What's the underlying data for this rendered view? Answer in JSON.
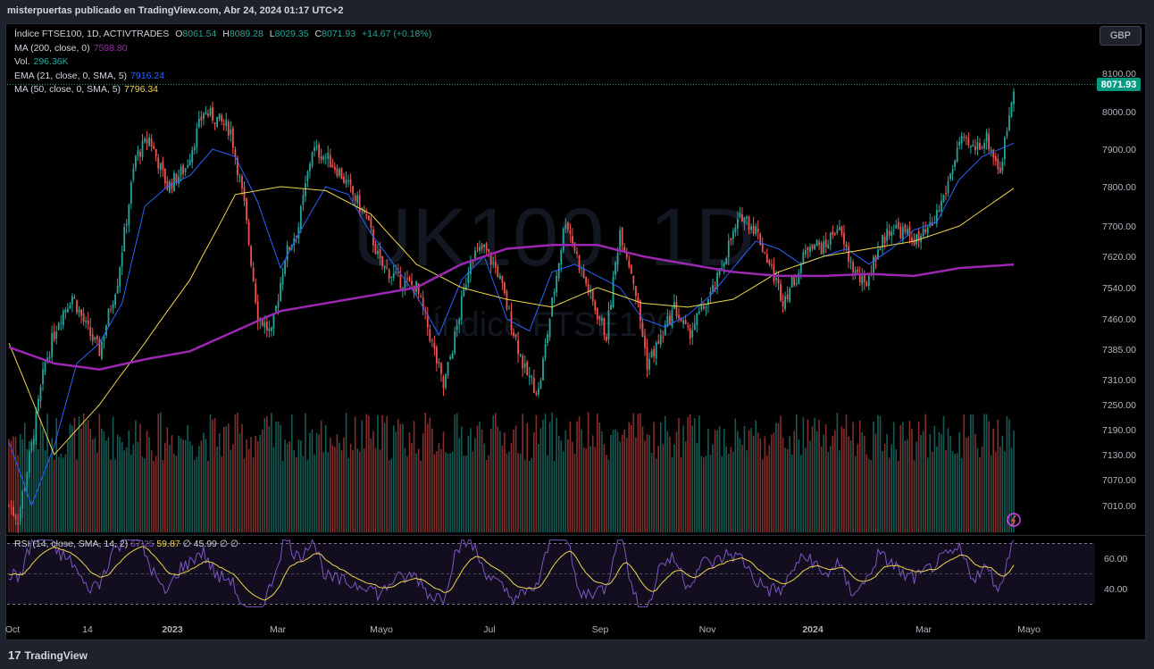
{
  "header": {
    "publisher": "misterpuertas publicado en TradingView.com, Abr 24, 2024 01:17 UTC+2"
  },
  "legend": {
    "symbol": "Índice FTSE100, 1D, ACTIVTRADES",
    "o_label": "O",
    "o": "8061.54",
    "h_label": "H",
    "h": "8089.28",
    "l_label": "L",
    "l": "8029.35",
    "c_label": "C",
    "c": "8071.93",
    "change": "+14.67 (+0.18%)",
    "ma200_label": "MA (200, close, 0)",
    "ma200": "7598.80",
    "vol_label": "Vol.",
    "vol": "296.36K",
    "ema21_label": "EMA (21, close, 0, SMA, 5)",
    "ema21": "7916.24",
    "ma50_label": "MA (50, close, 0, SMA, 5)",
    "ma50": "7796.34"
  },
  "currency_button": "GBP",
  "last_price": "8071.93",
  "watermark": {
    "symbol": "UK100, 1D",
    "name": "Índice FTSE100"
  },
  "rsi_legend": {
    "label": "RSI (14, close, SMA, 14, 2)",
    "v1": "67.25",
    "v2": "59.87",
    "v3": "∅",
    "v4": "45.99",
    "v5": "∅",
    "v6": "∅"
  },
  "footer": {
    "brand": "TradingView",
    "logo_mark": "17"
  },
  "colors": {
    "up": "#26a69a",
    "down": "#ef5350",
    "ma200": "#9c27b0",
    "ema21": "#2962ff",
    "ma50": "#f0d64a",
    "rsi": "#7e57c2",
    "rsi_ma": "#f0d64a"
  },
  "chart_data": {
    "type": "candlestick",
    "title": "Índice FTSE100, 1D, ACTIVTRADES",
    "price_axis": [
      "8100.00",
      "8000.00",
      "7900.00",
      "7800.00",
      "7700.00",
      "7620.00",
      "7540.00",
      "7460.00",
      "7385.00",
      "7310.00",
      "7250.00",
      "7190.00",
      "7130.00",
      "7070.00",
      "7010.00"
    ],
    "time_axis": [
      "Oct",
      "14",
      "2023",
      "Mar",
      "Mayo",
      "Jul",
      "Sep",
      "Nov",
      "2024",
      "Mar",
      "Mayo"
    ],
    "rsi_axis": [
      "60.00",
      "40.00"
    ],
    "close_path": [
      [
        0,
        7010
      ],
      [
        4,
        6980
      ],
      [
        10,
        7150
      ],
      [
        16,
        7350
      ],
      [
        22,
        7460
      ],
      [
        28,
        7520
      ],
      [
        34,
        7440
      ],
      [
        40,
        7380
      ],
      [
        48,
        7560
      ],
      [
        56,
        7880
      ],
      [
        62,
        7930
      ],
      [
        70,
        7800
      ],
      [
        78,
        7850
      ],
      [
        86,
        8000
      ],
      [
        92,
        7980
      ],
      [
        98,
        7950
      ],
      [
        104,
        7750
      ],
      [
        110,
        7470
      ],
      [
        116,
        7420
      ],
      [
        122,
        7620
      ],
      [
        128,
        7700
      ],
      [
        134,
        7900
      ],
      [
        140,
        7880
      ],
      [
        146,
        7840
      ],
      [
        152,
        7780
      ],
      [
        158,
        7720
      ],
      [
        164,
        7600
      ],
      [
        172,
        7560
      ],
      [
        180,
        7540
      ],
      [
        186,
        7420
      ],
      [
        192,
        7290
      ],
      [
        198,
        7440
      ],
      [
        204,
        7620
      ],
      [
        210,
        7640
      ],
      [
        216,
        7580
      ],
      [
        222,
        7450
      ],
      [
        228,
        7330
      ],
      [
        234,
        7280
      ],
      [
        240,
        7500
      ],
      [
        246,
        7720
      ],
      [
        252,
        7600
      ],
      [
        258,
        7500
      ],
      [
        264,
        7420
      ],
      [
        270,
        7690
      ],
      [
        276,
        7560
      ],
      [
        282,
        7350
      ],
      [
        288,
        7410
      ],
      [
        294,
        7490
      ],
      [
        300,
        7420
      ],
      [
        306,
        7480
      ],
      [
        312,
        7540
      ],
      [
        318,
        7650
      ],
      [
        324,
        7730
      ],
      [
        330,
        7690
      ],
      [
        336,
        7600
      ],
      [
        342,
        7510
      ],
      [
        348,
        7570
      ],
      [
        354,
        7660
      ],
      [
        360,
        7640
      ],
      [
        366,
        7700
      ],
      [
        372,
        7600
      ],
      [
        378,
        7540
      ],
      [
        384,
        7640
      ],
      [
        390,
        7700
      ],
      [
        396,
        7680
      ],
      [
        402,
        7660
      ],
      [
        408,
        7700
      ],
      [
        414,
        7790
      ],
      [
        420,
        7920
      ],
      [
        426,
        7900
      ],
      [
        432,
        7930
      ],
      [
        438,
        7840
      ],
      [
        444,
        8072
      ]
    ],
    "ma200_path": [
      [
        0,
        7390
      ],
      [
        20,
        7350
      ],
      [
        40,
        7335
      ],
      [
        60,
        7360
      ],
      [
        80,
        7380
      ],
      [
        100,
        7430
      ],
      [
        120,
        7480
      ],
      [
        140,
        7500
      ],
      [
        160,
        7520
      ],
      [
        180,
        7540
      ],
      [
        200,
        7600
      ],
      [
        220,
        7640
      ],
      [
        240,
        7650
      ],
      [
        260,
        7650
      ],
      [
        280,
        7620
      ],
      [
        300,
        7600
      ],
      [
        320,
        7580
      ],
      [
        340,
        7570
      ],
      [
        360,
        7570
      ],
      [
        380,
        7575
      ],
      [
        400,
        7570
      ],
      [
        420,
        7590
      ],
      [
        444,
        7599
      ]
    ],
    "ma50_path": [
      [
        0,
        7400
      ],
      [
        20,
        7130
      ],
      [
        40,
        7250
      ],
      [
        60,
        7400
      ],
      [
        80,
        7560
      ],
      [
        100,
        7780
      ],
      [
        120,
        7800
      ],
      [
        140,
        7790
      ],
      [
        160,
        7730
      ],
      [
        180,
        7600
      ],
      [
        200,
        7540
      ],
      [
        220,
        7510
      ],
      [
        240,
        7490
      ],
      [
        260,
        7540
      ],
      [
        280,
        7500
      ],
      [
        300,
        7490
      ],
      [
        320,
        7510
      ],
      [
        340,
        7580
      ],
      [
        360,
        7620
      ],
      [
        380,
        7640
      ],
      [
        400,
        7660
      ],
      [
        420,
        7700
      ],
      [
        444,
        7796
      ]
    ],
    "ema21_path": [
      [
        0,
        7160
      ],
      [
        10,
        7010
      ],
      [
        20,
        7150
      ],
      [
        30,
        7350
      ],
      [
        40,
        7400
      ],
      [
        50,
        7500
      ],
      [
        60,
        7750
      ],
      [
        70,
        7800
      ],
      [
        80,
        7830
      ],
      [
        90,
        7900
      ],
      [
        100,
        7880
      ],
      [
        110,
        7760
      ],
      [
        120,
        7590
      ],
      [
        130,
        7700
      ],
      [
        140,
        7800
      ],
      [
        150,
        7780
      ],
      [
        160,
        7680
      ],
      [
        170,
        7600
      ],
      [
        180,
        7520
      ],
      [
        190,
        7420
      ],
      [
        200,
        7560
      ],
      [
        210,
        7620
      ],
      [
        220,
        7460
      ],
      [
        230,
        7430
      ],
      [
        240,
        7580
      ],
      [
        250,
        7600
      ],
      [
        260,
        7570
      ],
      [
        270,
        7540
      ],
      [
        280,
        7460
      ],
      [
        290,
        7440
      ],
      [
        300,
        7470
      ],
      [
        310,
        7520
      ],
      [
        320,
        7590
      ],
      [
        330,
        7660
      ],
      [
        340,
        7640
      ],
      [
        350,
        7600
      ],
      [
        360,
        7620
      ],
      [
        370,
        7640
      ],
      [
        380,
        7600
      ],
      [
        390,
        7640
      ],
      [
        400,
        7690
      ],
      [
        410,
        7710
      ],
      [
        420,
        7820
      ],
      [
        430,
        7880
      ],
      [
        444,
        7916
      ]
    ]
  }
}
